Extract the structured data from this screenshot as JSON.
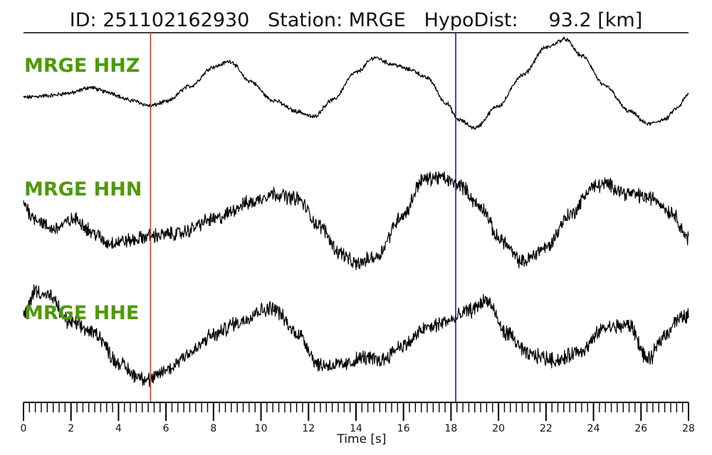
{
  "header": {
    "id_label": "ID:",
    "id_value": "251102162930",
    "station_label": "Station:",
    "station_value": "MRGE",
    "hypodist_label": "HypoDist:",
    "hypodist_value": "93.2",
    "hypodist_unit": "[km]"
  },
  "colors": {
    "trace": "#000000",
    "channel_label": "#4e9a06",
    "p_pick": "#e03030",
    "s_pick": "#1a1aa8"
  },
  "chart_data": {
    "type": "line",
    "title": "ID: 251102162930   Station: MRGE   HypoDist:     93.2 [km]",
    "xlabel": "Time [s]",
    "xlim": [
      0,
      28
    ],
    "x_major_ticks": [
      0,
      2,
      4,
      6,
      8,
      10,
      12,
      14,
      16,
      18,
      20,
      22,
      24,
      26,
      28
    ],
    "x_minor_tick_step": 0.25,
    "grid": false,
    "picks": [
      {
        "phase": "P",
        "time": 5.35,
        "color": "#e03030"
      },
      {
        "phase": "S",
        "time": 18.2,
        "color": "#1a1aa8"
      }
    ],
    "series": [
      {
        "name": "MRGE HHZ",
        "noise": 0.03,
        "x": [
          0,
          1,
          2,
          2.8,
          3.5,
          4.5,
          5.35,
          6,
          7,
          8,
          8.7,
          9.5,
          10.5,
          11.5,
          12.2,
          13,
          14,
          14.8,
          15.5,
          16.3,
          17,
          17.8,
          18.3,
          19,
          20,
          21,
          22,
          22.8,
          23.5,
          24.5,
          25.5,
          26.3,
          27,
          27.5,
          28
        ],
        "y": [
          0,
          0.03,
          0.08,
          0.18,
          0.1,
          -0.05,
          -0.15,
          -0.08,
          0.2,
          0.55,
          0.65,
          0.3,
          -0.05,
          -0.25,
          -0.35,
          -0.05,
          0.45,
          0.72,
          0.6,
          0.5,
          0.35,
          -0.1,
          -0.4,
          -0.55,
          -0.15,
          0.4,
          0.9,
          1.05,
          0.75,
          0.2,
          -0.25,
          -0.48,
          -0.4,
          -0.2,
          0.05
        ]
      },
      {
        "name": "MRGE HHN",
        "noise": 0.12,
        "x": [
          0,
          0.4,
          1.2,
          2.2,
          3,
          3.5,
          4.5,
          5.35,
          6.5,
          8,
          9.5,
          10.5,
          11.5,
          12.5,
          13.3,
          14,
          14.8,
          16,
          16.8,
          17.5,
          18.3,
          19.3,
          20,
          21,
          22,
          23,
          24,
          24.5,
          25.5,
          26.5,
          27.3,
          28
        ],
        "y": [
          0.4,
          0.1,
          -0.15,
          0.05,
          -0.25,
          -0.45,
          -0.4,
          -0.3,
          -0.25,
          0.05,
          0.4,
          0.6,
          0.5,
          -0.1,
          -0.65,
          -0.9,
          -0.75,
          0.15,
          0.9,
          0.95,
          0.8,
          0.3,
          -0.35,
          -0.85,
          -0.55,
          0.15,
          0.75,
          0.8,
          0.6,
          0.5,
          0.2,
          -0.35
        ]
      },
      {
        "name": "MRGE HHE",
        "noise": 0.12,
        "x": [
          0,
          0.5,
          1,
          2,
          3,
          4,
          4.7,
          5.35,
          6,
          7,
          8,
          9,
          10,
          10.5,
          11.5,
          12.5,
          13.5,
          14.3,
          15,
          16,
          17,
          18,
          18.8,
          19.5,
          20.3,
          21.3,
          22.5,
          23.5,
          24.5,
          25.5,
          26.3,
          27,
          27.5,
          28
        ],
        "y": [
          0.45,
          0.95,
          0.85,
          0.3,
          0.1,
          -0.5,
          -0.75,
          -0.85,
          -0.65,
          -0.3,
          0.05,
          0.3,
          0.55,
          0.6,
          0.1,
          -0.55,
          -0.55,
          -0.4,
          -0.45,
          -0.15,
          0.2,
          0.35,
          0.55,
          0.75,
          0.1,
          -0.35,
          -0.45,
          -0.25,
          0.2,
          0.25,
          -0.45,
          0.05,
          0.35,
          0.45
        ]
      }
    ]
  }
}
